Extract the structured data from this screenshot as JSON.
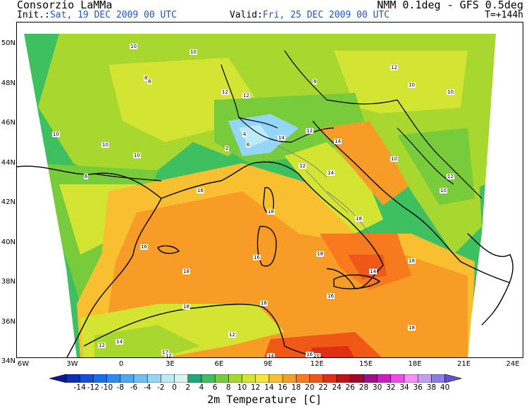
{
  "header": {
    "org": "Consorzio LaMMa",
    "init_label": "Init.:",
    "init_value": "Sat, 19 DEC 2009   00 UTC",
    "model": "NMM 0.1deg - GFS 0.5deg",
    "valid_label": "Valid:",
    "valid_value": "Fri, 25 DEC 2009   00 UTC",
    "forecast_hour": "T=+144h"
  },
  "axes": {
    "lat_labels": [
      "50N",
      "48N",
      "46N",
      "44N",
      "42N",
      "40N",
      "38N",
      "36N",
      "34N"
    ],
    "lon_labels": [
      "6W",
      "3W",
      "0",
      "3E",
      "6E",
      "9E",
      "12E",
      "15E",
      "18E",
      "21E",
      "24E"
    ]
  },
  "colorbar": {
    "title": "2m Temperature [C]",
    "labels": [
      "-14",
      "-12",
      "-10",
      "-8",
      "-6",
      "-4",
      "-2",
      "0",
      "2",
      "4",
      "6",
      "8",
      "10",
      "12",
      "14",
      "16",
      "18",
      "20",
      "22",
      "24",
      "26",
      "28",
      "30",
      "32",
      "34",
      "36",
      "38",
      "40"
    ],
    "colors": [
      "#0a1c8c",
      "#1030b4",
      "#1450d2",
      "#1870e6",
      "#2a8cf0",
      "#4aa8f4",
      "#6cc0f6",
      "#94d6f8",
      "#bceaf6",
      "#d8f4f0",
      "#1ea878",
      "#3ec060",
      "#78cc3c",
      "#a8d830",
      "#d4e432",
      "#f4e43c",
      "#f8c030",
      "#f89c28",
      "#f87a1e",
      "#f05818",
      "#e03014",
      "#c01414",
      "#9e0c28",
      "#a0108c",
      "#c81ec8",
      "#ec4cec",
      "#f490f4",
      "#c0a0f0",
      "#8c7ce4",
      "#5c54c8"
    ]
  },
  "map_labels": [
    {
      "v": "10"
    },
    {
      "v": "10"
    },
    {
      "v": "8"
    },
    {
      "v": "12"
    },
    {
      "v": "10"
    },
    {
      "v": "6"
    },
    {
      "v": "8"
    },
    {
      "v": "10"
    },
    {
      "v": "12"
    },
    {
      "v": "8"
    },
    {
      "v": "10"
    },
    {
      "v": "10"
    },
    {
      "v": "12"
    },
    {
      "v": "14"
    },
    {
      "v": "12"
    },
    {
      "v": "14"
    },
    {
      "v": "16"
    },
    {
      "v": "18"
    },
    {
      "v": "16"
    },
    {
      "v": "18"
    },
    {
      "v": "16"
    },
    {
      "v": "18"
    },
    {
      "v": "18"
    },
    {
      "v": "14"
    },
    {
      "v": "16"
    },
    {
      "v": "18"
    },
    {
      "v": "12"
    },
    {
      "v": "14"
    },
    {
      "v": "18"
    },
    {
      "v": "18"
    },
    {
      "v": "12"
    },
    {
      "v": "10"
    },
    {
      "v": "16"
    },
    {
      "v": "14"
    },
    {
      "v": "12"
    },
    {
      "v": "20"
    },
    {
      "v": "6"
    },
    {
      "v": "4"
    },
    {
      "v": "2"
    },
    {
      "v": "10"
    },
    {
      "v": "12"
    },
    {
      "v": "10"
    },
    {
      "v": "12"
    },
    {
      "v": "14"
    },
    {
      "v": "18"
    },
    {
      "v": "12"
    }
  ]
}
